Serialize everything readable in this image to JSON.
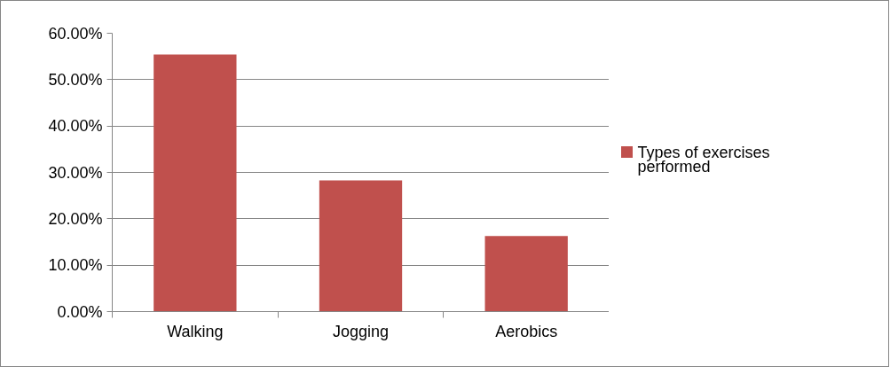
{
  "chart_data": {
    "type": "bar",
    "categories": [
      "Walking",
      "Jogging",
      "Aerobics"
    ],
    "series": [
      {
        "name": "Types of exercises performed",
        "color": "#c0504d",
        "values": [
          55.4,
          28.3,
          16.3
        ]
      }
    ],
    "ylim": [
      0,
      60
    ],
    "yticks": [
      {
        "value": 0,
        "label": "0.00%"
      },
      {
        "value": 10,
        "label": "10.00%"
      },
      {
        "value": 20,
        "label": "20.00%"
      },
      {
        "value": 30,
        "label": "30.00%"
      },
      {
        "value": 40,
        "label": "40.00%"
      },
      {
        "value": 50,
        "label": "50.00%"
      },
      {
        "value": 60,
        "label": "60.00%"
      }
    ],
    "grid": "y",
    "legend": "right"
  }
}
